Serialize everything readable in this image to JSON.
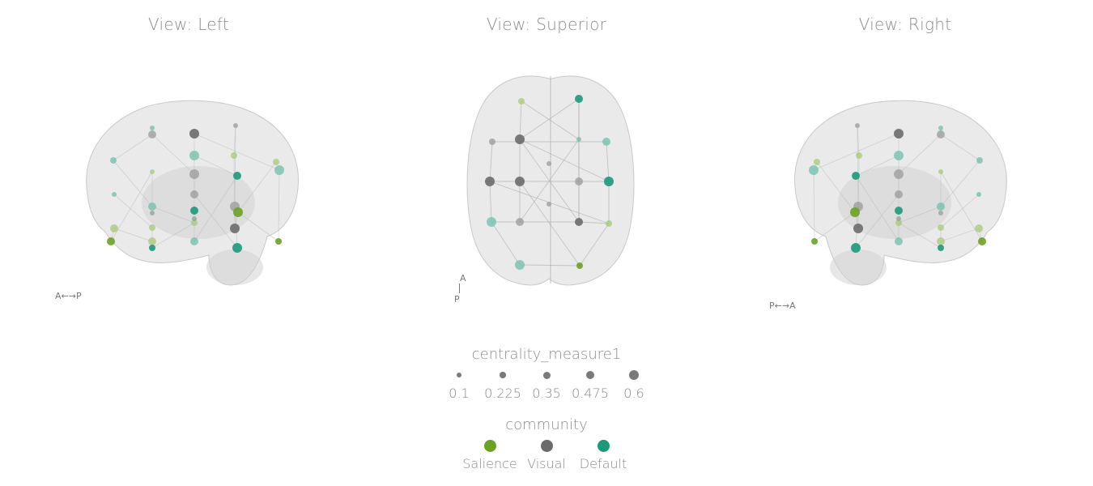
{
  "views": [
    {
      "title": "View: Left",
      "orientation": "A←→P"
    },
    {
      "title": "View: Superior",
      "orientation_top": "A",
      "orientation_bottom": "P"
    },
    {
      "title": "View: Right",
      "orientation": "P←→A"
    }
  ],
  "legend_size": {
    "title": "centrality_measure1",
    "items": [
      {
        "label": "0.1",
        "value": 0.1
      },
      {
        "label": "0.225",
        "value": 0.225
      },
      {
        "label": "0.35",
        "value": 0.35
      },
      {
        "label": "0.475",
        "value": 0.475
      },
      {
        "label": "0.6",
        "value": 0.6
      }
    ]
  },
  "legend_community": {
    "title": "community",
    "items": [
      {
        "label": "Salience",
        "color": "#6aa321"
      },
      {
        "label": "Visual",
        "color": "#6b6b6b"
      },
      {
        "label": "Default",
        "color": "#1b9a7a"
      }
    ]
  }
}
